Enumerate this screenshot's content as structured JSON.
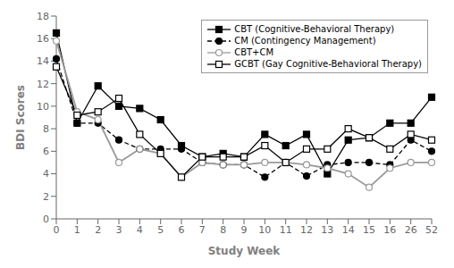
{
  "chart_data": {
    "type": "line",
    "categories": [
      "0",
      "1",
      "2",
      "3",
      "4",
      "5",
      "6",
      "7",
      "8",
      "9",
      "10",
      "11",
      "12",
      "13",
      "14",
      "15",
      "16",
      "26",
      "52"
    ],
    "series": [
      {
        "name": "CBT (Cognitive-Behavioral Therapy)",
        "color": "#000000",
        "marker": "square",
        "line_style": "solid",
        "values": [
          16.5,
          8.5,
          11.8,
          10.0,
          9.8,
          8.8,
          6.5,
          5.5,
          5.8,
          5.5,
          7.5,
          6.5,
          7.5,
          4.0,
          7.0,
          7.2,
          8.5,
          8.5,
          10.8
        ]
      },
      {
        "name": "CM (Contingency Management)",
        "color": "#000000",
        "marker": "circle",
        "line_style": "dashed",
        "values": [
          14.2,
          8.5,
          8.5,
          7.0,
          6.2,
          6.2,
          6.2,
          5.0,
          4.8,
          4.8,
          3.7,
          5.0,
          3.8,
          4.8,
          5.0,
          5.0,
          4.8,
          7.0,
          6.0
        ]
      },
      {
        "name": "CBT+CM",
        "color": "#999999",
        "marker": "circle_open",
        "line_style": "solid",
        "values": [
          15.8,
          9.5,
          8.8,
          5.0,
          6.2,
          5.8,
          3.7,
          5.0,
          4.8,
          4.8,
          5.0,
          5.0,
          4.8,
          4.5,
          4.0,
          2.8,
          4.5,
          5.0,
          5.0
        ]
      },
      {
        "name": "GCBT (Gay Cognitive-Behavioral Therapy)",
        "color": "#000000",
        "marker": "square_open",
        "line_style": "solid",
        "values": [
          13.5,
          9.2,
          9.5,
          10.7,
          7.5,
          5.8,
          3.7,
          5.5,
          5.5,
          5.5,
          6.5,
          5.0,
          6.2,
          6.2,
          8.0,
          7.2,
          6.2,
          7.5,
          7.0
        ]
      }
    ],
    "xlabel": "Study Week",
    "ylabel": "BDI Scores",
    "ylim": [
      0,
      18
    ],
    "yticks": [
      0,
      2,
      4,
      6,
      8,
      10,
      12,
      14,
      16,
      18
    ],
    "grid": false,
    "legend": "upper right"
  }
}
